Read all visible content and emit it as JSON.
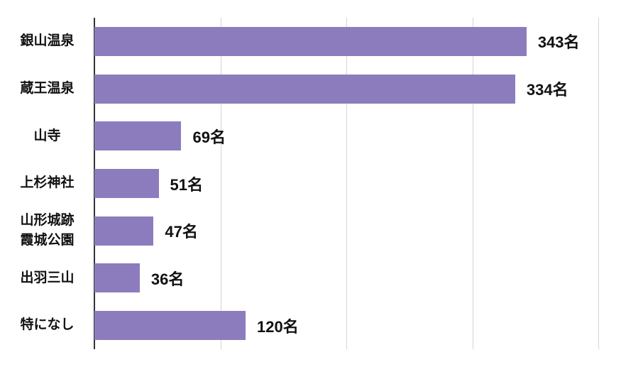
{
  "chart_data": {
    "type": "bar",
    "orientation": "horizontal",
    "title": "",
    "xlabel": "",
    "ylabel": "",
    "unit": "名",
    "categories": [
      "銀山温泉",
      "蔵王温泉",
      "山寺",
      "上杉神社",
      "山形城跡\n霞城公園",
      "出羽三山",
      "特になし"
    ],
    "values": [
      343,
      334,
      69,
      51,
      47,
      36,
      120
    ],
    "value_labels": [
      "343名",
      "334名",
      "69名",
      "51名",
      "47名",
      "36名",
      "120名"
    ],
    "xlim": [
      0,
      400
    ],
    "gridline_values": [
      100,
      200,
      300,
      400
    ],
    "grid": true,
    "legend": false,
    "colors": {
      "bar": "#8d7cbd",
      "gridline": "#d5d5d5",
      "axis": "#333333",
      "text": "#111111",
      "background": "#ffffff"
    }
  }
}
